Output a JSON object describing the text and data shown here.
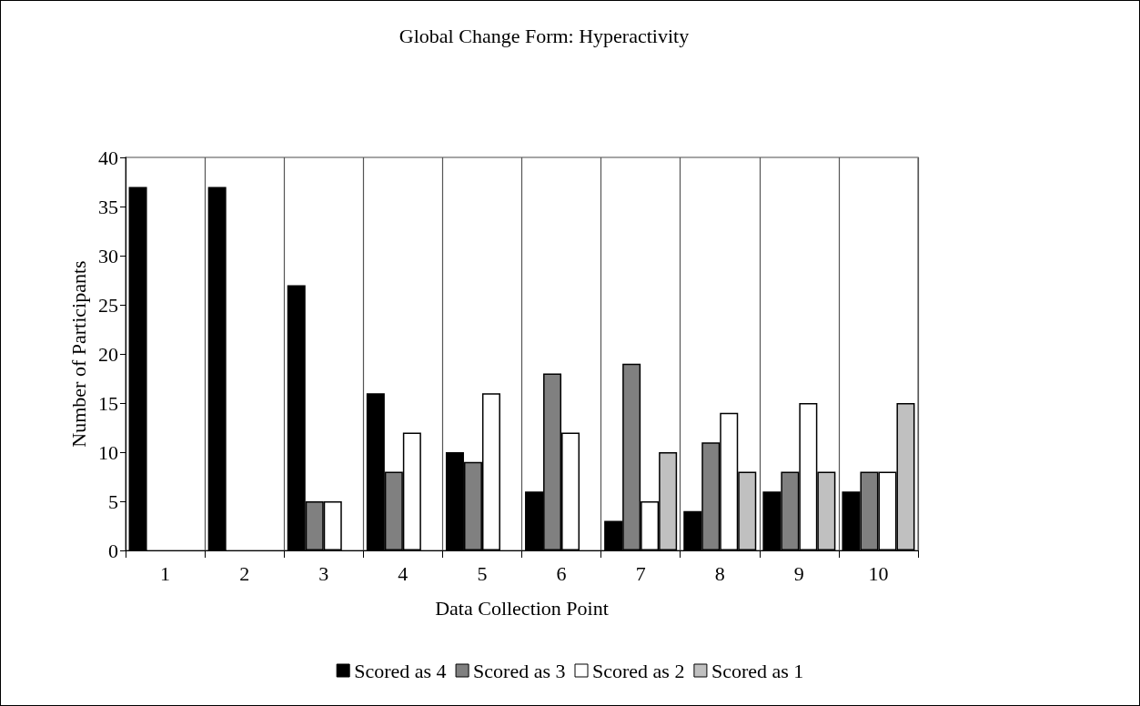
{
  "chart_data": {
    "type": "bar",
    "title": "Global Change Form: Hyperactivity",
    "xlabel": "Data Collection Point",
    "ylabel": "Number of Participants",
    "categories": [
      "1",
      "2",
      "3",
      "4",
      "5",
      "6",
      "7",
      "8",
      "9",
      "10"
    ],
    "series": [
      {
        "name": "Scored as 4",
        "color": "#000000",
        "values": [
          37,
          37,
          27,
          16,
          10,
          6,
          3,
          4,
          6,
          6
        ]
      },
      {
        "name": "Scored as 3",
        "color": "#808080",
        "values": [
          0,
          0,
          5,
          8,
          9,
          18,
          19,
          11,
          8,
          8
        ]
      },
      {
        "name": "Scored as 2",
        "color": "#ffffff",
        "values": [
          0,
          0,
          5,
          12,
          16,
          12,
          5,
          14,
          15,
          8
        ]
      },
      {
        "name": "Scored as 1",
        "color": "#c0c0c0",
        "values": [
          0,
          0,
          0,
          0,
          0,
          0,
          10,
          8,
          8,
          15
        ]
      }
    ],
    "ylim": [
      0,
      40
    ],
    "yticks": [
      0,
      5,
      10,
      15,
      20,
      25,
      30,
      35,
      40
    ],
    "grid": "x",
    "legend": "bottom"
  }
}
